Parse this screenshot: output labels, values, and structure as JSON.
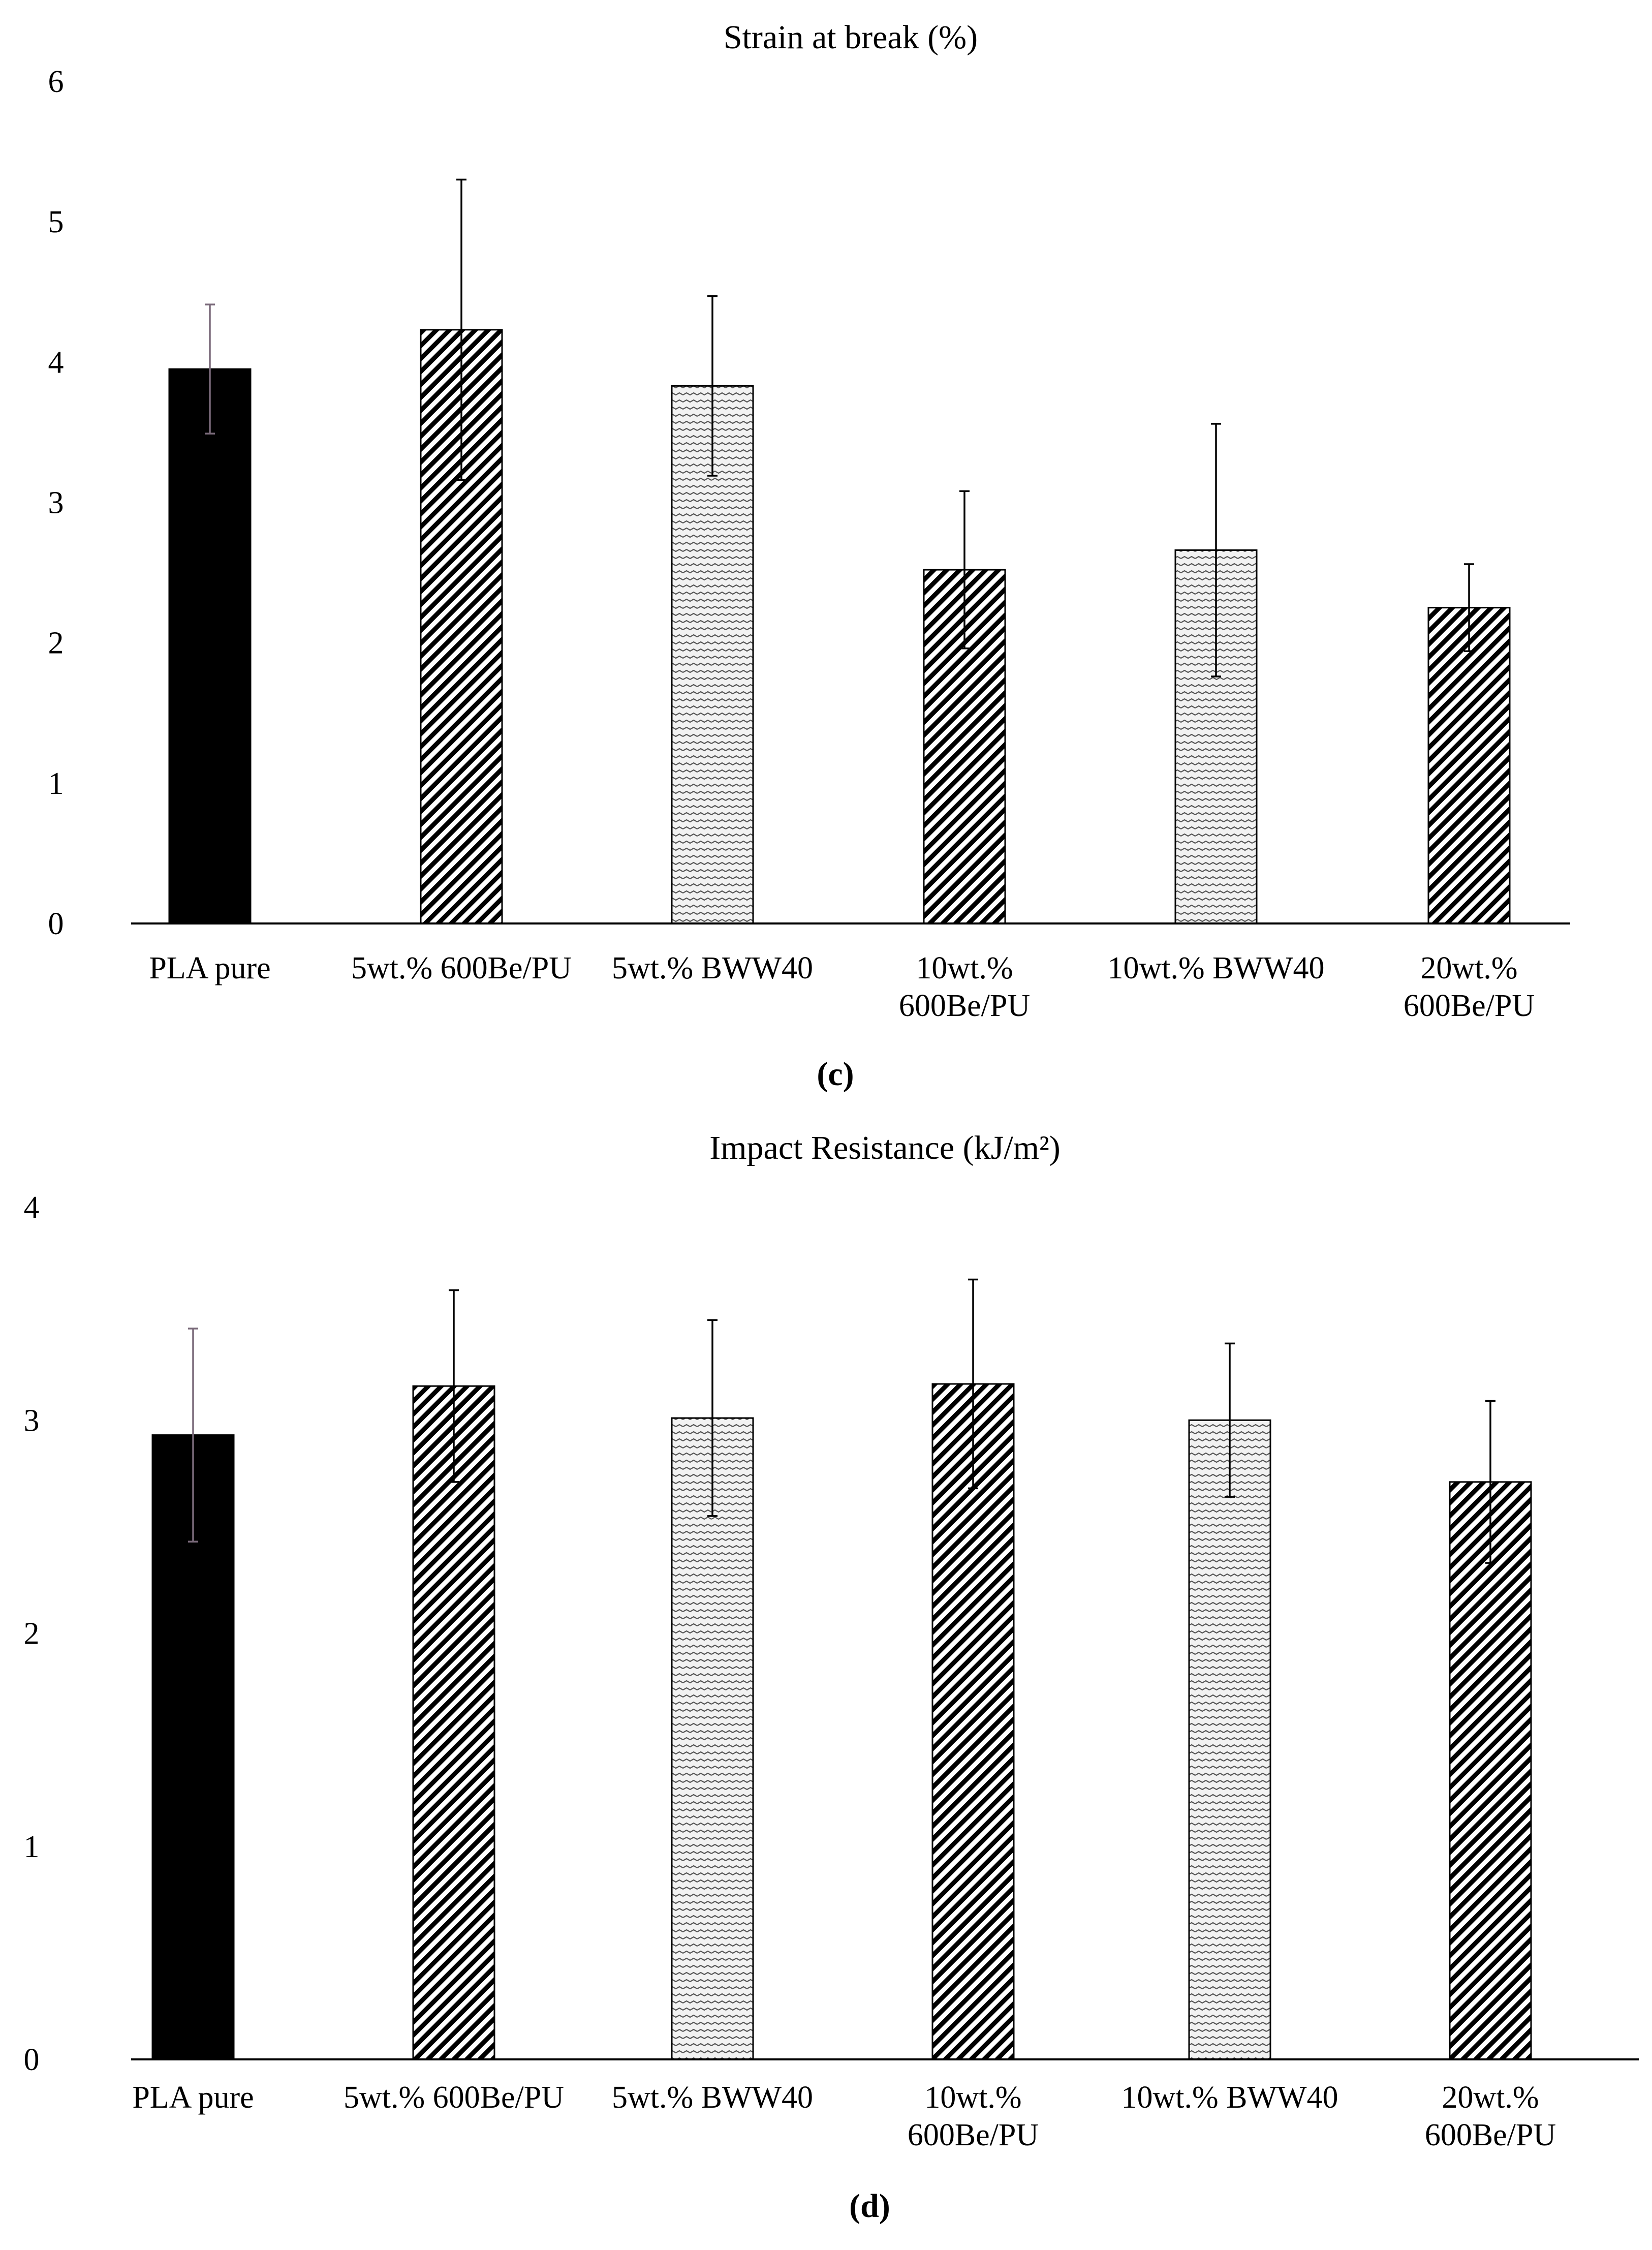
{
  "chart_data": [
    {
      "type": "bar",
      "title": "Strain at break (%)",
      "panel_label": "(c)",
      "xlabel": "",
      "ylabel": "",
      "ylim": [
        0,
        6
      ],
      "yticks": [
        0,
        1,
        2,
        3,
        4,
        5,
        6
      ],
      "grid": false,
      "categories": [
        [
          "PLA pure"
        ],
        [
          "5wt.% 600Be/PU"
        ],
        [
          "5wt.% BWW40"
        ],
        [
          "10wt.%",
          "600Be/PU"
        ],
        [
          "10wt.% BWW40"
        ],
        [
          "20wt.%",
          "600Be/PU"
        ]
      ],
      "values": [
        3.95,
        4.23,
        3.83,
        2.52,
        2.66,
        2.25
      ],
      "error": [
        0.46,
        1.07,
        0.64,
        0.56,
        0.9,
        0.31
      ],
      "fills": [
        "solid",
        "hatch",
        "wave",
        "hatch",
        "wave",
        "hatch"
      ]
    },
    {
      "type": "bar",
      "title": "Impact Resistance (kJ/m²)",
      "panel_label": "(d)",
      "xlabel": "",
      "ylabel": "",
      "ylim": [
        0,
        4
      ],
      "yticks": [
        0,
        1,
        2,
        3,
        4
      ],
      "grid": false,
      "categories": [
        [
          "PLA pure"
        ],
        [
          "5wt.% 600Be/PU"
        ],
        [
          "5wt.% BWW40"
        ],
        [
          "10wt.%",
          "600Be/PU"
        ],
        [
          "10wt.% BWW40"
        ],
        [
          "20wt.%",
          "600Be/PU"
        ]
      ],
      "values": [
        2.93,
        3.16,
        3.01,
        3.17,
        3.0,
        2.71
      ],
      "error": [
        0.5,
        0.45,
        0.46,
        0.49,
        0.36,
        0.38
      ],
      "fills": [
        "solid",
        "hatch",
        "wave",
        "hatch",
        "wave",
        "hatch"
      ]
    }
  ],
  "colors": {
    "bar_solid": "#000000",
    "hatch_stroke": "#000000",
    "axis": "#000000",
    "wave_fill": "#f2f2f2"
  }
}
